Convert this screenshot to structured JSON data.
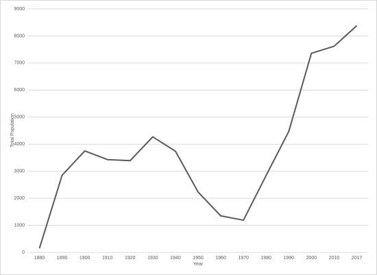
{
  "chart_data": {
    "type": "line",
    "x_label": "Year",
    "y_label": "Total Population",
    "categories": [
      "1880",
      "1890",
      "1900",
      "1910",
      "1920",
      "1930",
      "1940",
      "1950",
      "1960",
      "1970",
      "1980",
      "1990",
      "2000",
      "2010",
      "2017"
    ],
    "values": [
      150,
      2850,
      3750,
      3430,
      3390,
      4270,
      3740,
      2230,
      1350,
      1190,
      2840,
      4470,
      7360,
      7620,
      8380
    ],
    "color": "#595959",
    "ylim": [
      0,
      9000
    ],
    "yticks": [
      0,
      1000,
      2000,
      3000,
      4000,
      5000,
      6000,
      7000,
      8000,
      9000
    ],
    "grid": true
  }
}
